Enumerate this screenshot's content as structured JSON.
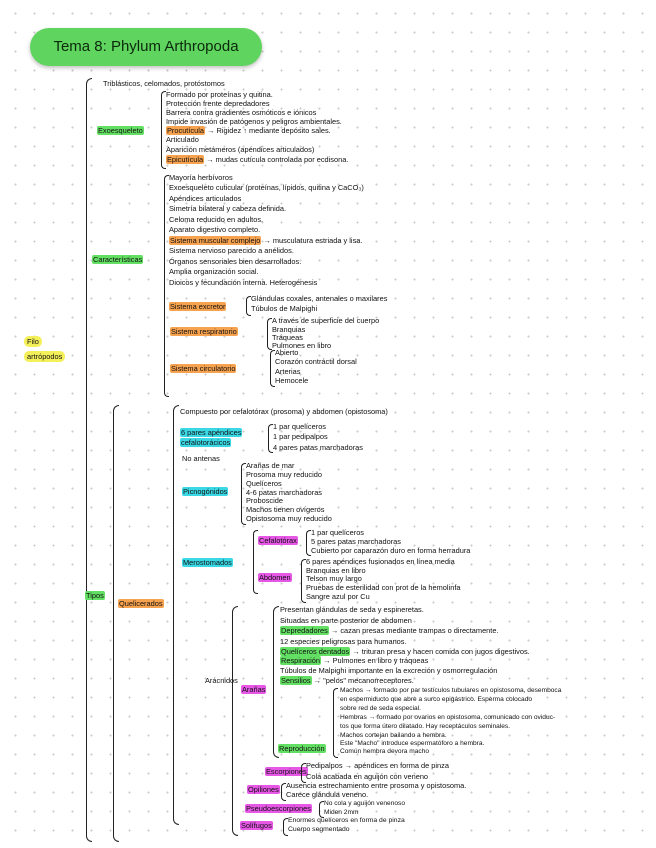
{
  "title": "Tema 8: Phylum Arthropoda",
  "root": [
    "Filo",
    "artrópodos"
  ],
  "intro": "Triblásticos, celomados, protóstomos",
  "exo": {
    "label": "Exoesqueleto",
    "items": [
      "Formado por proteínas y quitina.",
      "Protección frente depredadores",
      "Barrera contra gradientes osmóticos e iónicos",
      "Impide invasión de patógenos y peligros ambientales.",
      "→ Rigidez ↑ mediante depósito sales.",
      "Articulado",
      "Aparición metámeros (apéndices articulados)",
      "→ mudas cutícula controlada por ecdisona."
    ],
    "procuticula": "Procutícula",
    "epicuticula": "Epicutícula"
  },
  "car": {
    "label": "Características",
    "items": [
      "Mayoría herbívoros",
      "Exoesqueleto cuticular (proteínas, lípidos, quitina y CaCO₃)",
      "Apéndices articulados",
      "Simetría bilateral y cabeza definida.",
      "Celoma reducido en adultos.",
      "Aparato digestivo completo.",
      "→ musculatura estriada y lisa.",
      "Sistema nervioso parecido a anélidos.",
      "Órganos sensoriales bien desarrollados.",
      "Amplia organización social.",
      "Dioicos y fecundación interna. Heterogénesis"
    ],
    "muscular": "Sistema muscular complejo",
    "excretor": {
      "label": "Sistema excretor",
      "items": [
        "Glándulas coxales, antenales o maxilares",
        "Túbulos de Malpighi"
      ]
    },
    "respiratorio": {
      "label": "Sistema respiratorio",
      "items": [
        "A través de superficie del cuerpo",
        "Branquias",
        "Tráqueas",
        "Pulmones en libro"
      ]
    },
    "circulatorio": {
      "label": "Sistema circulatorio",
      "items": [
        "Abierto",
        "Corazón contráctil dorsal",
        "Arterias",
        "Hemocele"
      ]
    }
  },
  "tipos": "Tipos",
  "quel": {
    "label": "Quelicerados",
    "compuesto": "Compuesto por cefalotórax (prosoma) y abdomen (opistosoma)",
    "apendices": {
      "label": [
        "6 pares apéndices",
        "cefalotorácicos"
      ],
      "items": [
        "1 par quelíceros",
        "1 par pedipalpos",
        "4 pares patas marchadoras"
      ]
    },
    "no_antenas": "No antenas",
    "picno": {
      "label": "Picnogónidos",
      "items": [
        "Arañas de mar",
        "Prosoma muy reducido",
        "Quelíceros",
        "4-6 patas marchadoras",
        "Proboscide",
        "Machos tienen ovígeros",
        "Opistosoma muy reducido"
      ]
    },
    "mero": {
      "label": "Merostomados",
      "cef": {
        "label": "Cefalotórax",
        "items": [
          "1 par quelíceros",
          "5 pares patas marchadoras",
          "Cubierto por caparazón duro en forma herradura"
        ]
      },
      "abd": {
        "label": "Abdomen",
        "items": [
          "6 pares apéndices fusionados en línea media",
          "Branquias en libro",
          "Telson muy largo",
          "Pruebas de esterilidad con prot de la hemolinfa",
          "Sangre azul por Cu"
        ]
      }
    },
    "arac": {
      "label": "Arácnidos",
      "aranas": {
        "label": "Arañas",
        "items": [
          "Presentan glándulas de seda y espineretas.",
          "Situadas en parte posterior de abdomen",
          "→ cazan presas mediante trampas o directamente.",
          "12 especies peligrosas para humanos.",
          "→ trituran presa y hacen comida con jugos digestivos.",
          "→ Pulmones en libro y tráqueas",
          "Túbulos de Malpighi importante en la excreción y osmorregulación",
          "→ \"pelos\" mecanorreceptores."
        ],
        "hl": [
          "Depredadores",
          "Quelíceros dentados",
          "Respiración",
          "Sensilios"
        ],
        "repro": {
          "label": "Reproducción",
          "items": [
            "Machos → formado por par testículos tubulares en opistosoma, desemboca",
            "en espermiducto que abre a surco epigástrico. Esperma colocado",
            "sobre red de seda especial.",
            "Hembras → formado por ovarios en opistosoma, comunicado con oviduc-",
            "tos que forma útero dilatado. Hay receptáculos seminales.",
            "Machos cortejan bailando a hembra.",
            "Este \"Macho\" introduce espermatóforo a hembra.",
            "Común hembra devora macho"
          ]
        }
      },
      "escorp": {
        "label": "Escorpiones",
        "items": [
          "Pedipalpos → apéndices en forma de pinza",
          "Cola acabada en aguijón con veneno"
        ]
      },
      "opil": {
        "label": "Opiliones",
        "items": [
          "Ausencia estrechamiento entre prosoma y opistosoma.",
          "Carece glándula veneno."
        ]
      },
      "pseudo": {
        "label": "Pseudoescorpiones",
        "items": [
          "No cola y aguijón venenoso",
          "Miden 2mm"
        ]
      },
      "soli": {
        "label": "Solífugos",
        "items": [
          "Enormes quelíceros en forma de pinza",
          "Cuerpo segmentado"
        ]
      }
    }
  }
}
